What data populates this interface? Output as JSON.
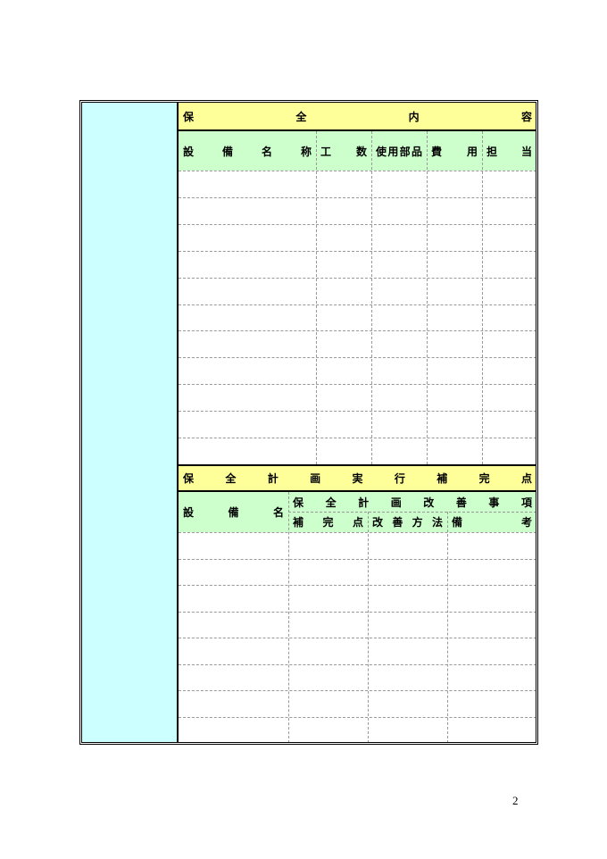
{
  "section1": {
    "title": "保全内容",
    "columns": [
      "設備名称",
      "工数",
      "使用部品",
      "費用",
      "担当"
    ],
    "row_count": 11
  },
  "section2": {
    "title": "保全計画実行補完点",
    "col_equipment": "設備名",
    "group_header": "保全計画改善事項",
    "subcolumns": [
      "補完点",
      "改善方法",
      "備考"
    ],
    "row_count": 8
  },
  "page_number": "2",
  "colors": {
    "side_panel": "#ccffff",
    "title_bar": "#ffff99",
    "header": "#ccffcc"
  }
}
